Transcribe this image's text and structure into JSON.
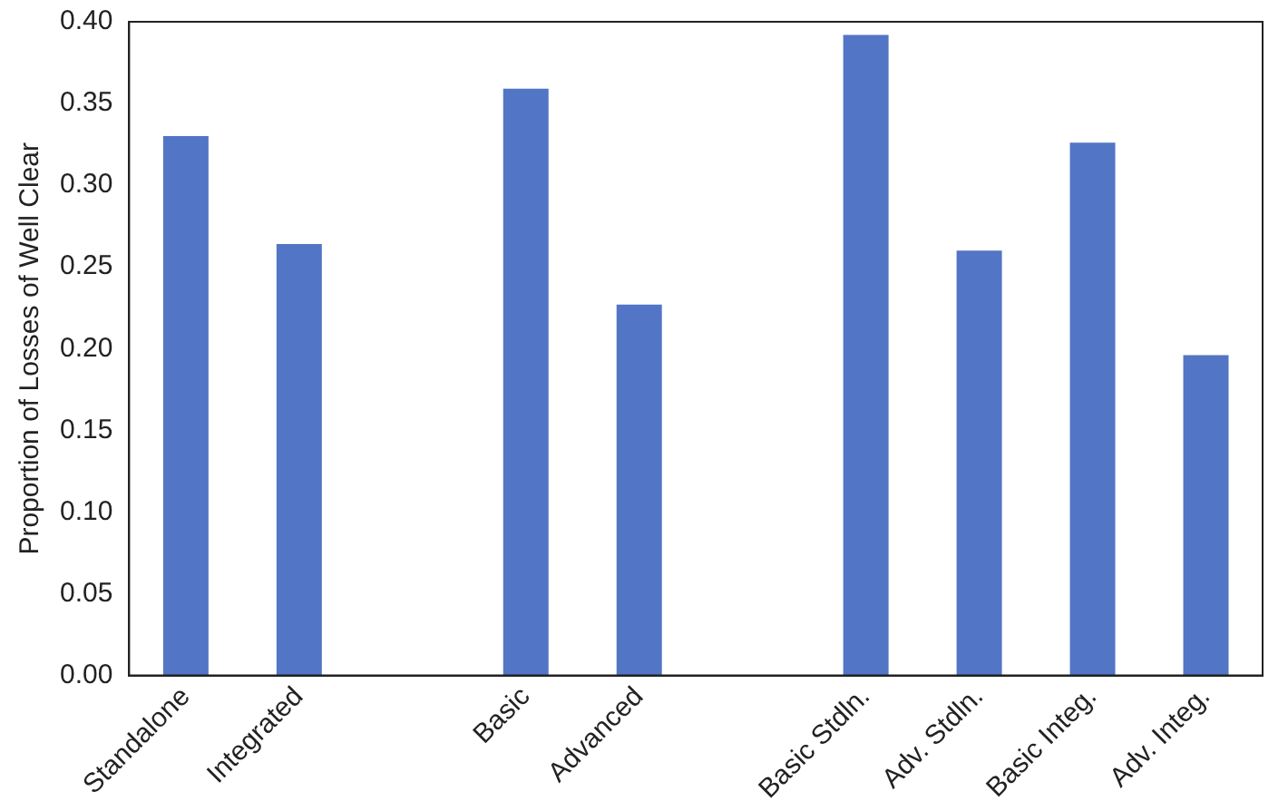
{
  "chart_data": {
    "type": "bar",
    "ylabel": "Proportion of Losses of Well Clear",
    "categories": [
      "Standalone",
      "Integrated",
      null,
      "Basic",
      "Advanced",
      null,
      "Basic Stdln.",
      "Adv. Stdln.",
      "Basic Integ.",
      "Adv. Integ."
    ],
    "values": [
      0.33,
      0.264,
      null,
      0.359,
      0.227,
      null,
      0.392,
      0.26,
      0.326,
      0.196
    ],
    "color": "#5375c5",
    "ylim": [
      0,
      0.4
    ],
    "yticks": [
      {
        "value": 0,
        "label": "0.00"
      },
      {
        "value": 0.05,
        "label": "0.05"
      },
      {
        "value": 0.1,
        "label": "0.10"
      },
      {
        "value": 0.15,
        "label": "0.15"
      },
      {
        "value": 0.2,
        "label": "0.20"
      },
      {
        "value": 0.25,
        "label": "0.25"
      },
      {
        "value": 0.3,
        "label": "0.30"
      },
      {
        "value": 0.35,
        "label": "0.35"
      },
      {
        "value": 0.4,
        "label": "0.40"
      }
    ],
    "grid": false,
    "legend": false
  }
}
